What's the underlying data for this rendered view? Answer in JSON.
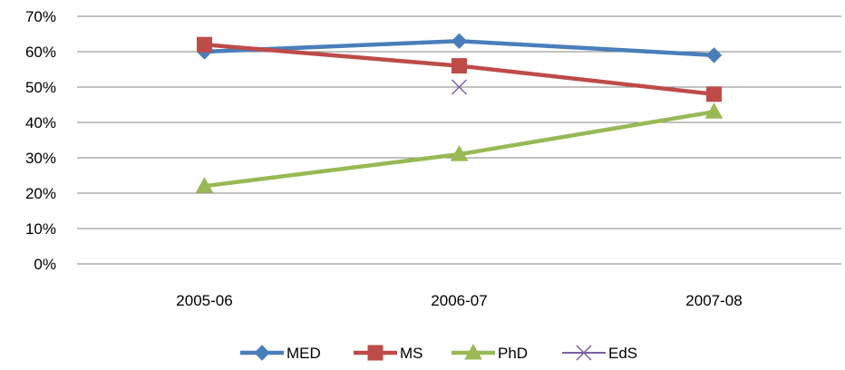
{
  "chart_data": {
    "type": "line",
    "categories": [
      "2005-06",
      "2006-07",
      "2007-08"
    ],
    "ylim": [
      0,
      70
    ],
    "y_ticks": [
      0,
      10,
      20,
      30,
      40,
      50,
      60,
      70
    ],
    "y_tick_labels": [
      "0%",
      "10%",
      "20%",
      "30%",
      "40%",
      "50%",
      "60%",
      "70%"
    ],
    "grid": "horizontal",
    "legend_position": "bottom",
    "series": [
      {
        "name": "MED",
        "values": [
          60,
          63,
          59
        ],
        "color": "#4a7ebb",
        "marker": "diamond"
      },
      {
        "name": "MS",
        "values": [
          62,
          56,
          48
        ],
        "color": "#be4b48",
        "marker": "square"
      },
      {
        "name": "PhD",
        "values": [
          22,
          31,
          43
        ],
        "color": "#98b954",
        "marker": "triangle"
      },
      {
        "name": "EdS",
        "values": [
          null,
          50,
          null
        ],
        "color": "#7d60a0",
        "marker": "x"
      }
    ]
  }
}
